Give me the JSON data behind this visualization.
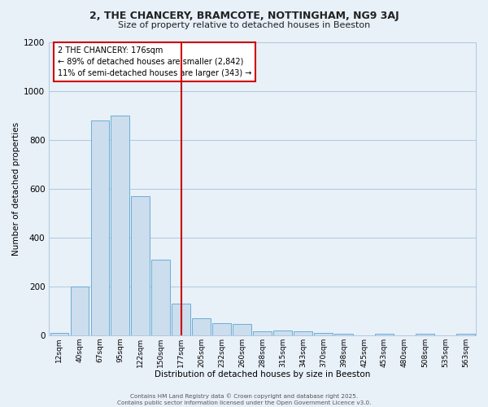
{
  "title": "2, THE CHANCERY, BRAMCOTE, NOTTINGHAM, NG9 3AJ",
  "subtitle": "Size of property relative to detached houses in Beeston",
  "xlabel": "Distribution of detached houses by size in Beeston",
  "ylabel": "Number of detached properties",
  "bar_labels": [
    "12sqm",
    "40sqm",
    "67sqm",
    "95sqm",
    "122sqm",
    "150sqm",
    "177sqm",
    "205sqm",
    "232sqm",
    "260sqm",
    "288sqm",
    "315sqm",
    "343sqm",
    "370sqm",
    "398sqm",
    "425sqm",
    "453sqm",
    "480sqm",
    "508sqm",
    "535sqm",
    "563sqm"
  ],
  "bar_heights": [
    10,
    200,
    880,
    900,
    570,
    310,
    130,
    70,
    50,
    45,
    15,
    20,
    15,
    10,
    5,
    0,
    5,
    0,
    5,
    0,
    5
  ],
  "bar_color": "#ccdded",
  "bar_edge_color": "#6baed6",
  "grid_color": "#b0c8e0",
  "background_color": "#e8f0f8",
  "ylim": [
    0,
    1200
  ],
  "yticks": [
    0,
    200,
    400,
    600,
    800,
    1000,
    1200
  ],
  "vline_x_index": 6,
  "vline_color": "#cc0000",
  "annotation_title": "2 THE CHANCERY: 176sqm",
  "annotation_line1": "← 89% of detached houses are smaller (2,842)",
  "annotation_line2": "11% of semi-detached houses are larger (343) →",
  "annotation_box_color": "#cc0000",
  "footer_line1": "Contains HM Land Registry data © Crown copyright and database right 2025.",
  "footer_line2": "Contains public sector information licensed under the Open Government Licence v3.0."
}
